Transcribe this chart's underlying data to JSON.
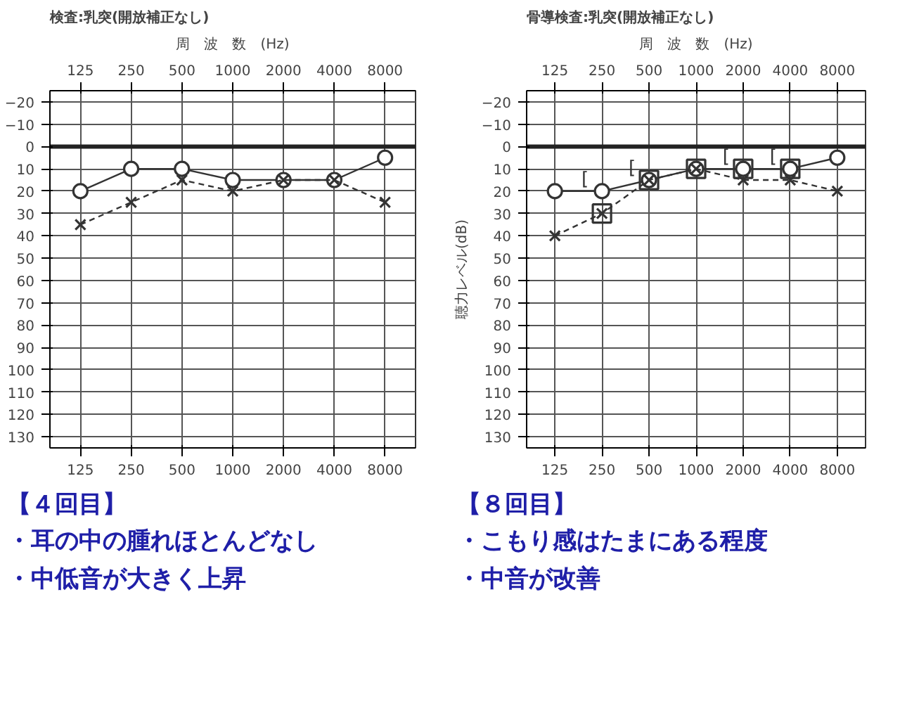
{
  "chart_data": [
    {
      "type": "line",
      "title": "検査:乳突(開放補正なし)",
      "xlabel": "周　波　数　(Hz)",
      "categories": [
        "125",
        "250",
        "500",
        "1000",
        "2000",
        "4000",
        "8000"
      ],
      "ylim": [
        135,
        -25
      ],
      "yticks": [
        -20,
        -10,
        0,
        10,
        20,
        30,
        40,
        50,
        60,
        70,
        80,
        90,
        100,
        110,
        120,
        130
      ],
      "grid": true,
      "ref_lines": [
        {
          "axis": "y",
          "value": 0,
          "label": null
        }
      ],
      "series": [
        {
          "color": "#333333",
          "marker": "circle",
          "line_style": "solid",
          "values": [
            20,
            10,
            10,
            15,
            15,
            15,
            5
          ]
        },
        {
          "color": "#333333",
          "marker": "cross",
          "line_style": "dashed",
          "values": [
            35,
            25,
            15,
            20,
            15,
            15,
            25
          ]
        }
      ],
      "annotations": [
        "【４回目】",
        "・耳の中の腫れほとんどなし",
        "・中低音が大きく上昇"
      ]
    },
    {
      "type": "line",
      "title": "骨導検査:乳突(開放補正なし)",
      "xlabel": "周　波　数　(Hz)",
      "ylabel": "聴力レベル(dB)",
      "categories": [
        "125",
        "250",
        "500",
        "1000",
        "2000",
        "4000",
        "8000"
      ],
      "ylim": [
        135,
        -25
      ],
      "yticks": [
        -20,
        -10,
        0,
        10,
        20,
        30,
        40,
        50,
        60,
        70,
        80,
        90,
        100,
        110,
        120,
        130
      ],
      "grid": true,
      "ref_lines": [
        {
          "axis": "y",
          "value": 0,
          "label": null
        }
      ],
      "series": [
        {
          "color": "#333333",
          "marker": "circle",
          "line_style": "solid",
          "values": [
            20,
            20,
            15,
            10,
            10,
            10,
            5
          ]
        },
        {
          "color": "#333333",
          "marker": "cross",
          "line_style": "dashed",
          "values": [
            40,
            30,
            15,
            10,
            15,
            15,
            20
          ]
        },
        {
          "type": "scatter",
          "color": "#333333",
          "marker": "square",
          "values": [
            null,
            30,
            15,
            10,
            10,
            10,
            null
          ]
        }
      ],
      "annotations": [
        {
          "text": "[",
          "x": "250",
          "y": 15
        },
        {
          "text": "[",
          "x": "500",
          "y": 10
        },
        {
          "text": "[",
          "x": "2000",
          "y": 5
        },
        {
          "text": "[",
          "x": "4000",
          "y": 5
        },
        "【８回目】",
        "・こもり感はたまにある程度",
        "・中音が改善"
      ]
    }
  ]
}
